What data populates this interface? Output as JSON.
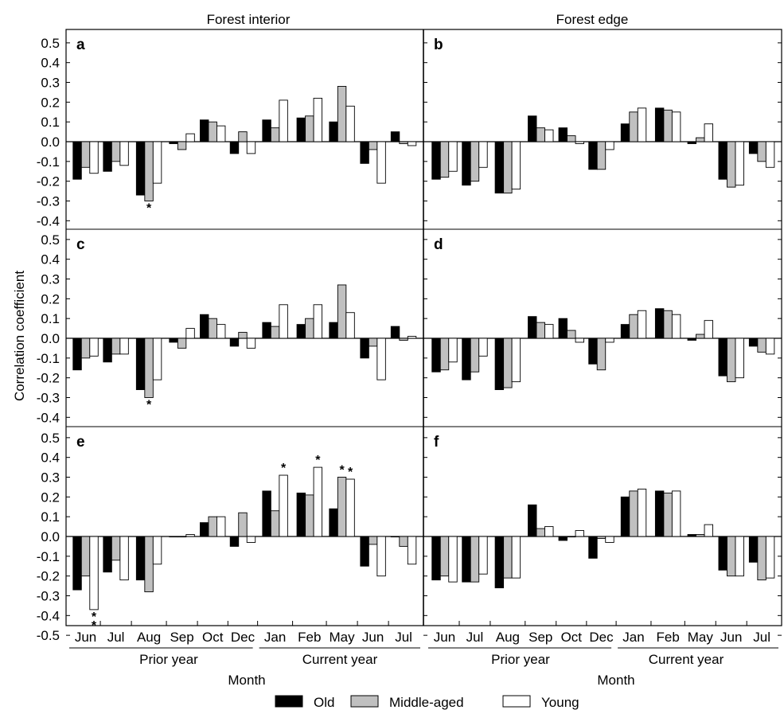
{
  "colors": {
    "Old": "#000000",
    "Middle-aged": "#c0c0c0",
    "Young": "#ffffff"
  },
  "column_titles": [
    "Forest interior",
    "Forest edge"
  ],
  "ylabel": "Correlation coefficient",
  "xlabel": "Month",
  "y_ticks": [
    "0.5",
    "0.4",
    "0.3",
    "0.2",
    "0.1",
    "0.0",
    "-0.1",
    "-0.2",
    "-0.3",
    "-0.4",
    "-0.5"
  ],
  "month_labels": [
    "Jun",
    "Jul",
    "Aug",
    "Sep",
    "Oct",
    "Dec",
    "Jan",
    "Feb",
    "May",
    "Jun",
    "Jul"
  ],
  "period_labels": [
    "Prior year",
    "Current year"
  ],
  "legend": [
    "Old",
    "Middle-aged",
    "Young"
  ],
  "significance_marker": "*",
  "chart_data": [
    {
      "type": "bar",
      "panel": "a",
      "ylim": [
        -0.5,
        0.55
      ],
      "categories": [
        "Jun",
        "Jul",
        "Aug",
        "Sep",
        "Oct",
        "Dec",
        "Jan",
        "Feb",
        "May",
        "Jun",
        "Jul"
      ],
      "series": [
        {
          "name": "Old",
          "values": [
            -0.19,
            -0.15,
            -0.27,
            -0.01,
            0.11,
            -0.06,
            0.11,
            0.12,
            0.1,
            -0.11,
            0.05
          ]
        },
        {
          "name": "Middle-aged",
          "values": [
            -0.13,
            -0.1,
            -0.3,
            -0.04,
            0.1,
            0.05,
            0.07,
            0.13,
            0.28,
            -0.04,
            -0.01
          ]
        },
        {
          "name": "Young",
          "values": [
            -0.16,
            -0.12,
            -0.21,
            0.04,
            0.08,
            -0.06,
            0.21,
            0.22,
            0.18,
            -0.21,
            -0.02
          ]
        }
      ],
      "significant": [
        [
          2,
          1,
          1
        ]
      ]
    },
    {
      "type": "bar",
      "panel": "b",
      "ylim": [
        -0.5,
        0.55
      ],
      "categories": [
        "Jun",
        "Jul",
        "Aug",
        "Sep",
        "Oct",
        "Dec",
        "Jan",
        "Feb",
        "May",
        "Jun",
        "Jul"
      ],
      "series": [
        {
          "name": "Old",
          "values": [
            -0.19,
            -0.22,
            -0.26,
            0.13,
            0.07,
            -0.14,
            0.09,
            0.17,
            -0.01,
            -0.19,
            -0.06
          ]
        },
        {
          "name": "Middle-aged",
          "values": [
            -0.18,
            -0.2,
            -0.26,
            0.07,
            0.03,
            -0.14,
            0.15,
            0.16,
            0.02,
            -0.23,
            -0.1
          ]
        },
        {
          "name": "Young",
          "values": [
            -0.15,
            -0.13,
            -0.24,
            0.06,
            -0.01,
            -0.04,
            0.17,
            0.15,
            0.09,
            -0.22,
            -0.13
          ]
        }
      ],
      "significant": []
    },
    {
      "type": "bar",
      "panel": "c",
      "ylim": [
        -0.5,
        0.55
      ],
      "categories": [
        "Jun",
        "Jul",
        "Aug",
        "Sep",
        "Oct",
        "Dec",
        "Jan",
        "Feb",
        "May",
        "Jun",
        "Jul"
      ],
      "series": [
        {
          "name": "Old",
          "values": [
            -0.16,
            -0.12,
            -0.26,
            -0.02,
            0.12,
            -0.04,
            0.08,
            0.07,
            0.08,
            -0.1,
            0.06
          ]
        },
        {
          "name": "Middle-aged",
          "values": [
            -0.1,
            -0.08,
            -0.3,
            -0.05,
            0.1,
            0.03,
            0.06,
            0.1,
            0.27,
            -0.04,
            -0.01
          ]
        },
        {
          "name": "Young",
          "values": [
            -0.09,
            -0.08,
            -0.21,
            0.05,
            0.07,
            -0.05,
            0.17,
            0.17,
            0.13,
            -0.21,
            0.01
          ]
        }
      ],
      "significant": [
        [
          2,
          1,
          1
        ]
      ]
    },
    {
      "type": "bar",
      "panel": "d",
      "ylim": [
        -0.5,
        0.55
      ],
      "categories": [
        "Jun",
        "Jul",
        "Aug",
        "Sep",
        "Oct",
        "Dec",
        "Jan",
        "Feb",
        "May",
        "Jun",
        "Jul"
      ],
      "series": [
        {
          "name": "Old",
          "values": [
            -0.17,
            -0.21,
            -0.26,
            0.11,
            0.1,
            -0.13,
            0.07,
            0.15,
            -0.01,
            -0.19,
            -0.04
          ]
        },
        {
          "name": "Middle-aged",
          "values": [
            -0.16,
            -0.17,
            -0.25,
            0.08,
            0.04,
            -0.16,
            0.12,
            0.14,
            0.02,
            -0.22,
            -0.07
          ]
        },
        {
          "name": "Young",
          "values": [
            -0.12,
            -0.09,
            -0.22,
            0.07,
            -0.02,
            -0.02,
            0.14,
            0.12,
            0.09,
            -0.2,
            -0.08
          ]
        }
      ],
      "significant": []
    },
    {
      "type": "bar",
      "panel": "e",
      "ylim": [
        -0.5,
        0.55
      ],
      "categories": [
        "Jun",
        "Jul",
        "Aug",
        "Sep",
        "Oct",
        "Dec",
        "Jan",
        "Feb",
        "May",
        "Jun",
        "Jul"
      ],
      "series": [
        {
          "name": "Old",
          "values": [
            -0.27,
            -0.18,
            -0.22,
            0.0,
            0.07,
            -0.05,
            0.23,
            0.22,
            0.14,
            -0.15,
            0.0
          ]
        },
        {
          "name": "Middle-aged",
          "values": [
            -0.2,
            -0.12,
            -0.28,
            0.0,
            0.1,
            0.12,
            0.13,
            0.21,
            0.3,
            -0.04,
            -0.05
          ]
        },
        {
          "name": "Young",
          "values": [
            -0.37,
            -0.22,
            -0.14,
            0.01,
            0.1,
            -0.03,
            0.31,
            0.35,
            0.29,
            -0.2,
            -0.14
          ]
        }
      ],
      "significant": [
        [
          0,
          2,
          2
        ],
        [
          6,
          2,
          1
        ],
        [
          7,
          2,
          1
        ],
        [
          8,
          1,
          1
        ],
        [
          8,
          2,
          1
        ]
      ]
    },
    {
      "type": "bar",
      "panel": "f",
      "ylim": [
        -0.5,
        0.55
      ],
      "categories": [
        "Jun",
        "Jul",
        "Aug",
        "Sep",
        "Oct",
        "Dec",
        "Jan",
        "Feb",
        "May",
        "Jun",
        "Jul"
      ],
      "series": [
        {
          "name": "Old",
          "values": [
            -0.22,
            -0.23,
            -0.26,
            0.16,
            -0.02,
            -0.11,
            0.2,
            0.23,
            0.01,
            -0.17,
            -0.13
          ]
        },
        {
          "name": "Middle-aged",
          "values": [
            -0.2,
            -0.23,
            -0.21,
            0.04,
            0.0,
            -0.01,
            0.23,
            0.22,
            0.01,
            -0.2,
            -0.22
          ]
        },
        {
          "name": "Young",
          "values": [
            -0.23,
            -0.19,
            -0.21,
            0.05,
            0.03,
            -0.03,
            0.24,
            0.23,
            0.06,
            -0.2,
            -0.21
          ]
        }
      ],
      "significant": []
    }
  ]
}
